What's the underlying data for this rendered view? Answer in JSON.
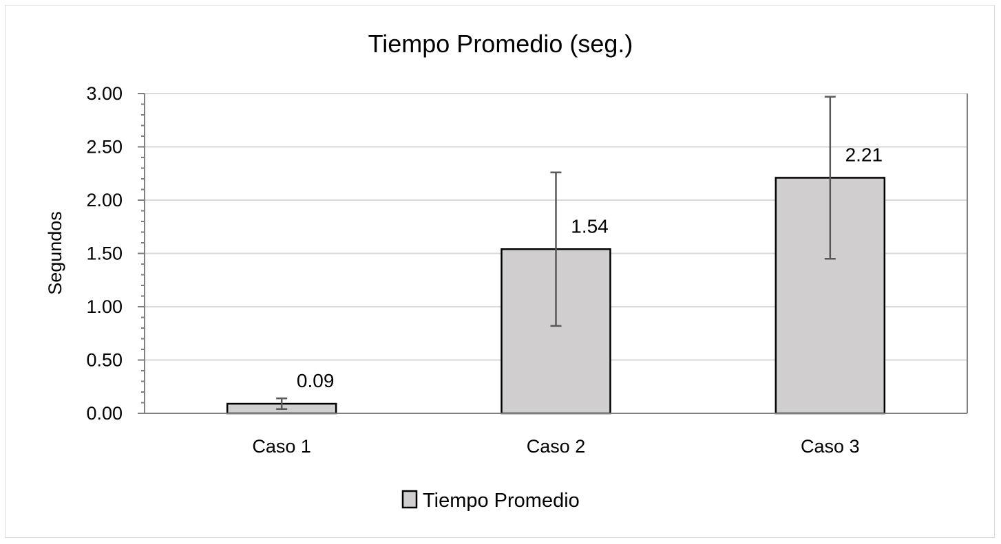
{
  "chart_data": {
    "type": "bar",
    "title": "Tiempo Promedio (seg.)",
    "xlabel": "",
    "ylabel": "Segundos",
    "ylim": [
      0,
      3
    ],
    "y_ticks": [
      "0.00",
      "0.50",
      "1.00",
      "1.50",
      "2.00",
      "2.50",
      "3.00"
    ],
    "y_minor_step": 0.1,
    "grid": true,
    "legend_position": "bottom",
    "categories": [
      "Caso 1",
      "Caso 2",
      "Caso 3"
    ],
    "series": [
      {
        "name": "Tiempo Promedio",
        "values": [
          0.09,
          1.54,
          2.21
        ],
        "data_labels": [
          "0.09",
          "1.54",
          "2.21"
        ],
        "error_low": [
          0.04,
          0.82,
          1.45
        ],
        "error_high": [
          0.14,
          2.26,
          2.97
        ],
        "color": "#d0cece",
        "edge_color": "#000000"
      }
    ],
    "colors": {
      "gridline": "#d9d9d9",
      "axis": "#7f7f7f",
      "error_bar": "#595959"
    }
  }
}
